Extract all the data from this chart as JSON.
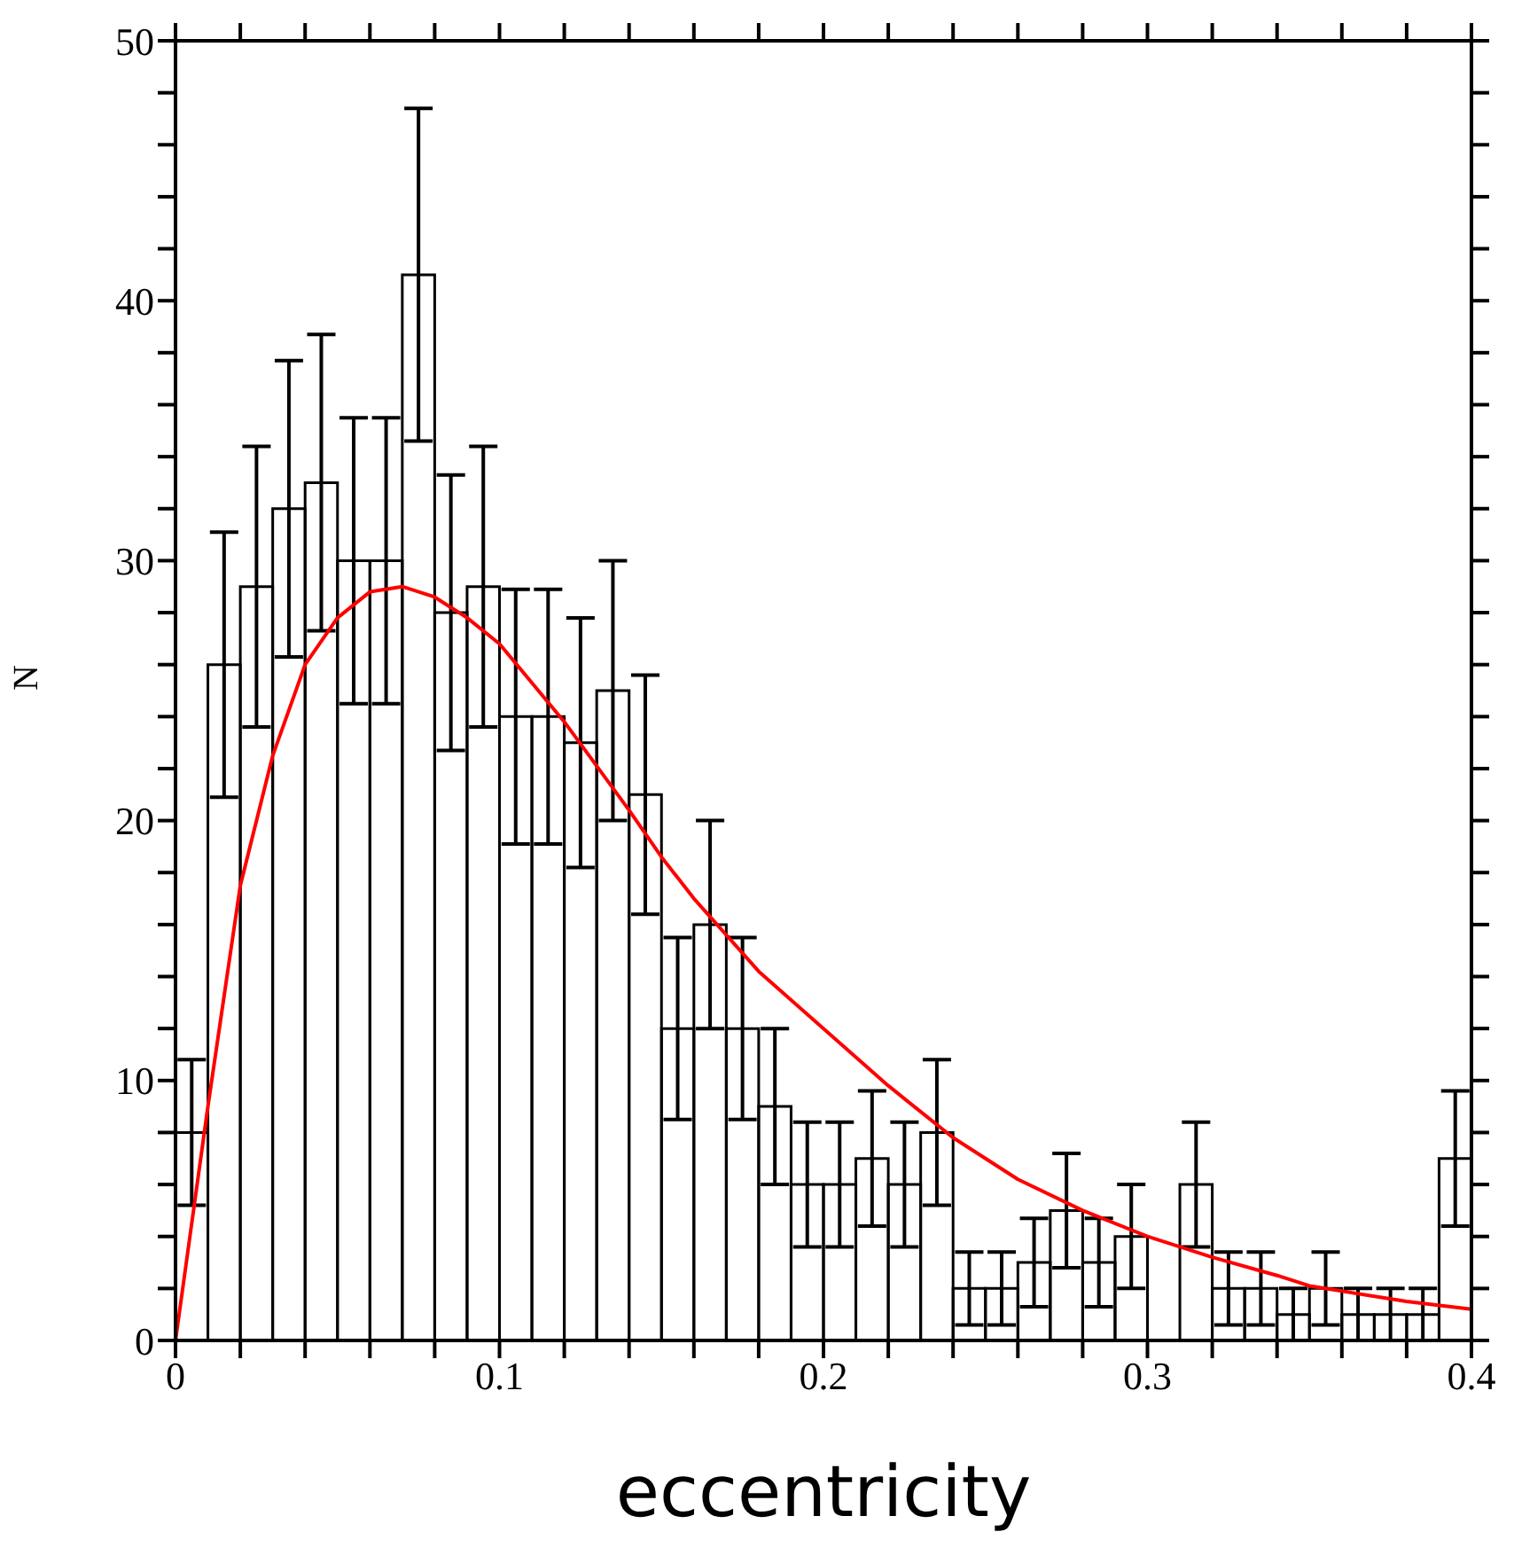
{
  "chart_data": {
    "type": "histogram",
    "xlabel": "eccentricity",
    "ylabel": "N",
    "color": "#000000",
    "bins": [
      0,
      0.01,
      0.02,
      0.03,
      0.04,
      0.05,
      0.06,
      0.07,
      0.08,
      0.09,
      0.1,
      0.11,
      0.12,
      0.13,
      0.14,
      0.15,
      0.16,
      0.17,
      0.18,
      0.19,
      0.2,
      0.21,
      0.22,
      0.23,
      0.24,
      0.25,
      0.26,
      0.27,
      0.28,
      0.29,
      0.3,
      0.31,
      0.32,
      0.33,
      0.34,
      0.35,
      0.36,
      0.37,
      0.38,
      0.39,
      0.4
    ],
    "values": [
      8,
      26,
      29,
      32,
      33,
      30,
      30,
      41,
      28,
      29,
      24,
      24,
      23,
      25,
      21,
      12,
      16,
      12,
      9,
      6,
      6,
      7,
      6,
      8,
      2,
      2,
      3,
      5,
      3,
      4,
      0,
      6,
      2,
      2,
      1,
      2,
      1,
      1,
      1,
      7
    ],
    "errors": [
      2.8,
      5.1,
      5.4,
      5.7,
      5.7,
      5.5,
      5.5,
      6.4,
      5.3,
      5.4,
      4.9,
      4.9,
      4.8,
      5,
      4.6,
      3.5,
      4,
      3.5,
      3,
      2.4,
      2.4,
      2.6,
      2.4,
      2.8,
      1.4,
      1.4,
      1.7,
      2.2,
      1.7,
      2,
      null,
      2.4,
      1.4,
      1.4,
      1,
      1.4,
      1,
      1,
      1,
      2.6
    ],
    "series": [
      {
        "type": "line",
        "color": "#ff0000",
        "x": [
          0,
          0.01,
          0.02,
          0.03,
          0.04,
          0.05,
          0.06,
          0.07,
          0.08,
          0.09,
          0.1,
          0.12,
          0.14,
          0.15,
          0.16,
          0.18,
          0.2,
          0.22,
          0.24,
          0.25,
          0.26,
          0.28,
          0.3,
          0.32,
          0.34,
          0.35,
          0.36,
          0.38,
          0.4
        ],
        "values": [
          0,
          9,
          17.5,
          22.5,
          26,
          27.8,
          28.8,
          29,
          28.6,
          27.8,
          26.8,
          23.8,
          20.4,
          18.6,
          17,
          14.2,
          12,
          9.8,
          7.8,
          7,
          6.2,
          5,
          4,
          3.2,
          2.5,
          2.1,
          1.9,
          1.5,
          1.2
        ]
      }
    ],
    "xlim": [
      0,
      0.4
    ],
    "ylim": [
      0,
      50
    ],
    "xticks": [
      0,
      {
        "value": 0.02,
        "label": null
      },
      {
        "value": 0.04,
        "label": null
      },
      {
        "value": 0.06,
        "label": null
      },
      {
        "value": 0.08,
        "label": null
      },
      0.1,
      {
        "value": 0.12,
        "label": null
      },
      {
        "value": 0.14,
        "label": null
      },
      {
        "value": 0.16,
        "label": null
      },
      {
        "value": 0.18,
        "label": null
      },
      0.2,
      {
        "value": 0.22,
        "label": null
      },
      {
        "value": 0.24,
        "label": null
      },
      {
        "value": 0.26,
        "label": null
      },
      {
        "value": 0.28,
        "label": null
      },
      0.3,
      {
        "value": 0.32,
        "label": null
      },
      {
        "value": 0.34,
        "label": null
      },
      {
        "value": 0.36,
        "label": null
      },
      {
        "value": 0.38,
        "label": null
      },
      0.4
    ],
    "yticks": [
      0,
      {
        "value": 2,
        "label": null
      },
      {
        "value": 4,
        "label": null
      },
      {
        "value": 6,
        "label": null
      },
      {
        "value": 8,
        "label": null
      },
      10,
      {
        "value": 12,
        "label": null
      },
      {
        "value": 14,
        "label": null
      },
      {
        "value": 16,
        "label": null
      },
      {
        "value": 18,
        "label": null
      },
      20,
      {
        "value": 22,
        "label": null
      },
      {
        "value": 24,
        "label": null
      },
      {
        "value": 26,
        "label": null
      },
      {
        "value": 28,
        "label": null
      },
      30,
      {
        "value": 32,
        "label": null
      },
      {
        "value": 34,
        "label": null
      },
      {
        "value": 36,
        "label": null
      },
      {
        "value": 38,
        "label": null
      },
      40,
      {
        "value": 42,
        "label": null
      },
      {
        "value": 44,
        "label": null
      },
      {
        "value": 46,
        "label": null
      },
      {
        "value": 48,
        "label": null
      },
      50
    ]
  }
}
